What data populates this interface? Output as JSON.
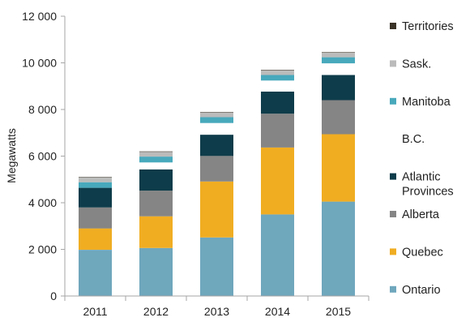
{
  "chart_data": {
    "type": "bar",
    "stacked": true,
    "categories": [
      "2011",
      "2012",
      "2013",
      "2014",
      "2015"
    ],
    "ylabel": "Megawatts",
    "ylim": [
      0,
      12000
    ],
    "yticks": [
      0,
      2000,
      4000,
      6000,
      8000,
      10000,
      12000
    ],
    "ytick_labels": [
      "0",
      "2 000",
      "4 000",
      "6 000",
      "8 000",
      "10 000",
      "12 000"
    ],
    "grid": false,
    "legend_position": "right",
    "series": [
      {
        "name": "Ontario",
        "color": "#6fa7bd",
        "values": [
          1980,
          2060,
          2510,
          3500,
          4050
        ]
      },
      {
        "name": "Quebec",
        "color": "#f0ad22",
        "values": [
          920,
          1360,
          2400,
          2870,
          2890
        ]
      },
      {
        "name": "Alberta",
        "color": "#858585",
        "values": [
          900,
          1100,
          1100,
          1450,
          1460
        ]
      },
      {
        "name": "Atlantic Provinces",
        "label_lines": [
          "Atlantic",
          "Provinces"
        ],
        "color": "#0e3c4a",
        "values": [
          840,
          910,
          910,
          950,
          1080
        ]
      },
      {
        "name": "B.C.",
        "color": "#ffffff",
        "values": [
          0,
          300,
          500,
          470,
          500
        ]
      },
      {
        "name": "Manitoba",
        "color": "#48a9bc",
        "values": [
          240,
          250,
          250,
          240,
          260
        ]
      },
      {
        "name": "Sask.",
        "color": "#bbbbbb",
        "values": [
          200,
          200,
          200,
          200,
          200
        ]
      },
      {
        "name": "Territories",
        "color": "#3a3226",
        "values": [
          20,
          20,
          20,
          20,
          20
        ]
      }
    ],
    "legend_order": [
      "Territories",
      "Sask.",
      "Manitoba",
      "B.C.",
      "Atlantic Provinces",
      "Alberta",
      "Quebec",
      "Ontario"
    ]
  }
}
